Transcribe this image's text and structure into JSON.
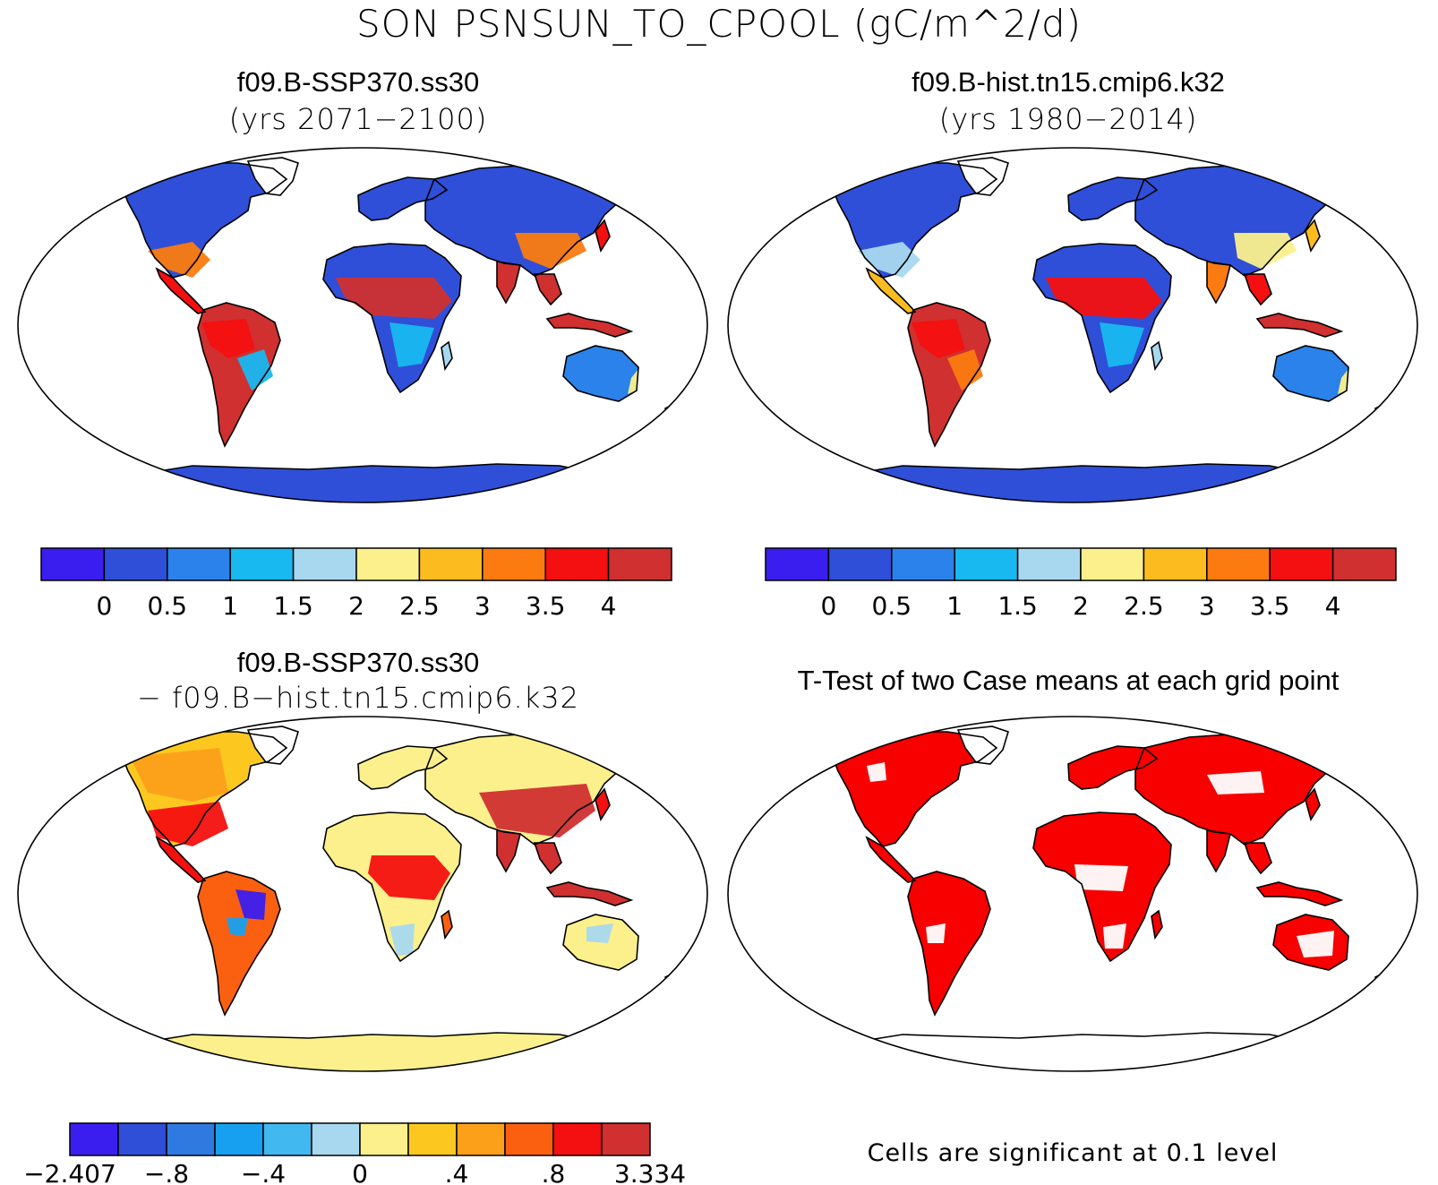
{
  "figure": {
    "title": "SON PSNSUN_TO_CPOOL (gC/m^2/d)"
  },
  "panels": [
    {
      "id": "case1",
      "title": "f09.B-SSP370.ss30",
      "subtitle": "(yrs 2071−2100)"
    },
    {
      "id": "case2",
      "title": "f09.B-hist.tn15.cmip6.k32",
      "subtitle": "(yrs 1980−2014)"
    },
    {
      "id": "diff",
      "title": "f09.B-SSP370.ss30",
      "subtitle": "− f09.B−hist.tn15.cmip6.k32"
    },
    {
      "id": "ttest",
      "title": "T-Test of two Case means at each grid point",
      "note": "Cells are significant at 0.1 level"
    }
  ],
  "colorbar_abs": {
    "colors": [
      "#3a1ef0",
      "#2f4fd8",
      "#2a82ea",
      "#18b8f0",
      "#a8d8f0",
      "#fbf08c",
      "#fcbb1e",
      "#fb7b10",
      "#f41010",
      "#d03030"
    ],
    "labels": [
      "0",
      "0.5",
      "1",
      "1.5",
      "2",
      "2.5",
      "3",
      "3.5",
      "4"
    ]
  },
  "colorbar_diff": {
    "colors": [
      "#3a1ef0",
      "#2f4fd8",
      "#2f7ae0",
      "#18a0f0",
      "#42b8f0",
      "#a8d8f0",
      "#fbf08c",
      "#fcc820",
      "#fca01a",
      "#fb6010",
      "#f41010",
      "#d03030"
    ],
    "labels": [
      "−2.407",
      "−.8",
      "−.4",
      "0",
      ".4",
      ".8",
      "3.334"
    ]
  },
  "map_colors": {
    "ocean": "#ffffff",
    "sig": "#f80000",
    "antarctica_abs": "#2f4fd8",
    "antarctica_diff": "#fbf08c"
  }
}
